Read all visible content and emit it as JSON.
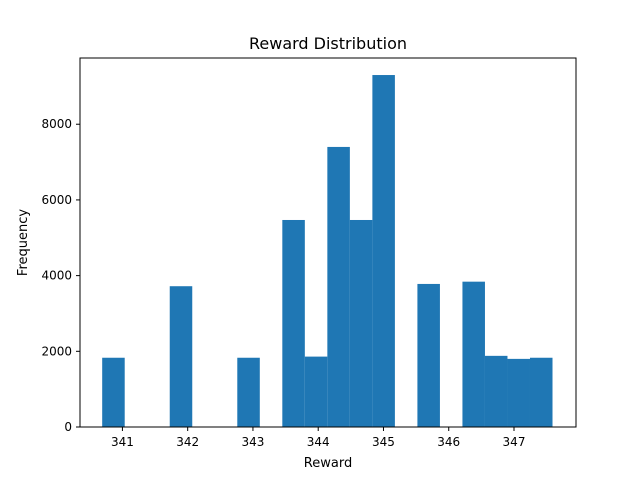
{
  "chart_data": {
    "type": "bar",
    "title": "Reward Distribution",
    "xlabel": "Reward",
    "ylabel": "Frequency",
    "xlim": [
      340.35,
      347.95
    ],
    "ylim": [
      0,
      9750
    ],
    "bar_color": "#1f77b4",
    "bin_width": 0.345,
    "bins": [
      {
        "x0": 340.69,
        "value": 1830
      },
      {
        "x0": 341.725,
        "value": 3720
      },
      {
        "x0": 342.76,
        "value": 1830
      },
      {
        "x0": 343.45,
        "value": 5470
      },
      {
        "x0": 343.795,
        "value": 1860
      },
      {
        "x0": 344.14,
        "value": 7400
      },
      {
        "x0": 344.485,
        "value": 5470
      },
      {
        "x0": 344.83,
        "value": 9300
      },
      {
        "x0": 345.52,
        "value": 3780
      },
      {
        "x0": 346.21,
        "value": 3840
      },
      {
        "x0": 346.555,
        "value": 1880
      },
      {
        "x0": 346.9,
        "value": 1800
      },
      {
        "x0": 347.245,
        "value": 1830
      }
    ],
    "xticks": [
      341,
      342,
      343,
      344,
      345,
      346,
      347
    ],
    "yticks": [
      0,
      2000,
      4000,
      6000,
      8000
    ],
    "grid": false,
    "legend": "none"
  }
}
